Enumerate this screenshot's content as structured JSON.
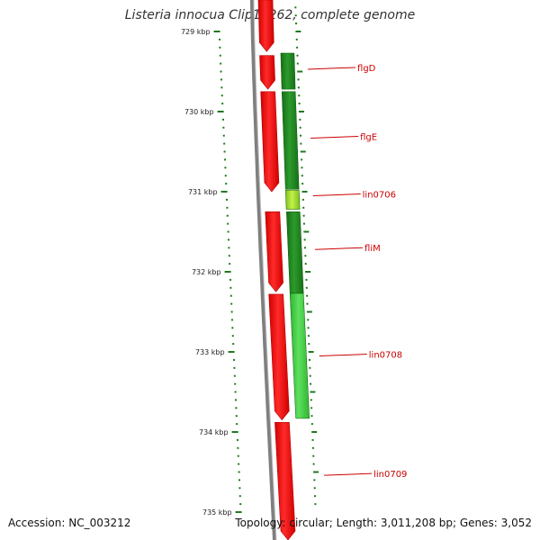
{
  "title": "Listeria innocua Clip11262, complete genome",
  "accession": "Accession: NC_003212",
  "topology": "Topology: circular; Length: 3,011,208 bp; Genes: 3,052",
  "colors": {
    "backbone": "#7f7f7f",
    "forward_strand": "#ff0000",
    "reverse_strand": "#1e8a1e",
    "reverse_strand_light": "#44d244",
    "highlight": "#a6e23a",
    "label": "#cc0000",
    "tick": "#1e7a1e"
  },
  "chart_data": {
    "type": "genome-map",
    "axis": {
      "unit": "kbp",
      "start_kbp": 729.0,
      "end_kbp": 735.0
    },
    "ticks": [
      {
        "kbp": 729,
        "label": "729 kbp"
      },
      {
        "kbp": 730,
        "label": "730 kbp"
      },
      {
        "kbp": 731,
        "label": "731 kbp"
      },
      {
        "kbp": 732,
        "label": "732 kbp"
      },
      {
        "kbp": 733,
        "label": "733 kbp"
      },
      {
        "kbp": 734,
        "label": "734 kbp"
      },
      {
        "kbp": 735,
        "label": "735 kbp"
      }
    ],
    "forward_genes": [
      {
        "start_kbp": 728.6,
        "end_kbp": 729.25
      },
      {
        "start_kbp": 729.3,
        "end_kbp": 729.72
      },
      {
        "start_kbp": 729.75,
        "end_kbp": 731.0
      },
      {
        "start_kbp": 731.25,
        "end_kbp": 732.25
      },
      {
        "start_kbp": 732.28,
        "end_kbp": 733.85
      },
      {
        "start_kbp": 733.88,
        "end_kbp": 735.4
      }
    ],
    "reverse_genes": [
      {
        "name": "flgD",
        "start_kbp": 729.27,
        "end_kbp": 729.72,
        "label": "flgD",
        "label_kbp": 729.46,
        "shade": "dark"
      },
      {
        "name": "flgE",
        "start_kbp": 729.75,
        "end_kbp": 730.97,
        "label": "flgE",
        "label_kbp": 730.32,
        "shade": "dark"
      },
      {
        "name": "lin0706",
        "start_kbp": 730.98,
        "end_kbp": 731.22,
        "label": "lin0706",
        "label_kbp": 731.04,
        "shade": "highlight"
      },
      {
        "name": "fliM",
        "start_kbp": 731.25,
        "end_kbp": 732.27,
        "label": "fliM",
        "label_kbp": 731.71,
        "shade": "dark"
      },
      {
        "name": "lin0708",
        "start_kbp": 732.27,
        "end_kbp": 733.83,
        "label": "lin0708",
        "label_kbp": 733.04,
        "shade": "light"
      },
      {
        "name": "lin0709",
        "start_kbp": null,
        "end_kbp": null,
        "label": "lin0709",
        "label_kbp": 734.53,
        "shade": "none"
      }
    ]
  }
}
